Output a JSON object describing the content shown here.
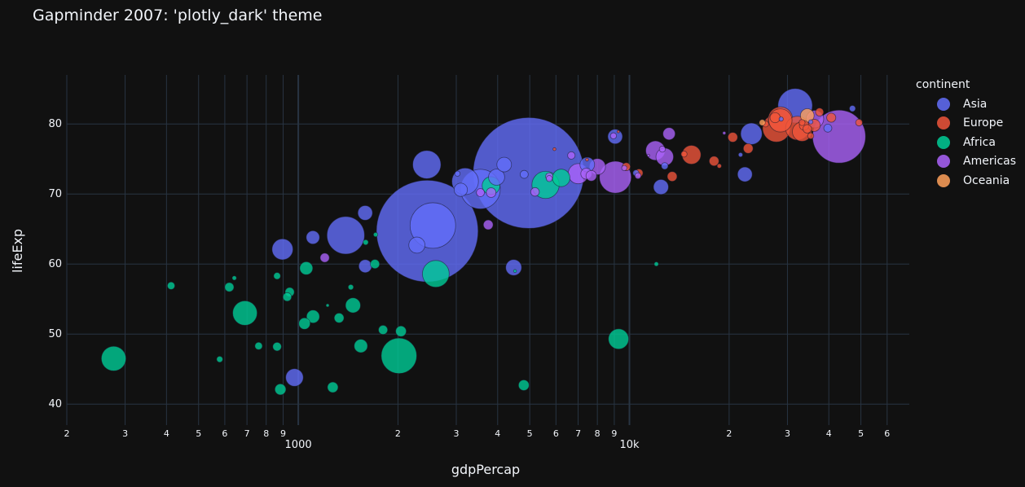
{
  "chart_data": {
    "type": "scatter",
    "title": "Gapminder 2007: 'plotly_dark' theme",
    "xlabel": "gdpPercap",
    "ylabel": "lifeExp",
    "x_scale": "log",
    "xlim": [
      200,
      70000
    ],
    "ylim": [
      37,
      87
    ],
    "grid": true,
    "legend_title": "continent",
    "legend_placement": "right",
    "x_major_ticks": [
      {
        "value": 1000,
        "label": "1000"
      },
      {
        "value": 10000,
        "label": "10k"
      }
    ],
    "x_minor_ticks": [
      {
        "value": 200,
        "label": "2"
      },
      {
        "value": 300,
        "label": "3"
      },
      {
        "value": 400,
        "label": "4"
      },
      {
        "value": 500,
        "label": "5"
      },
      {
        "value": 600,
        "label": "6"
      },
      {
        "value": 700,
        "label": "7"
      },
      {
        "value": 800,
        "label": "8"
      },
      {
        "value": 900,
        "label": "9"
      },
      {
        "value": 2000,
        "label": "2"
      },
      {
        "value": 3000,
        "label": "3"
      },
      {
        "value": 4000,
        "label": "4"
      },
      {
        "value": 5000,
        "label": "5"
      },
      {
        "value": 6000,
        "label": "6"
      },
      {
        "value": 7000,
        "label": "7"
      },
      {
        "value": 8000,
        "label": "8"
      },
      {
        "value": 9000,
        "label": "9"
      },
      {
        "value": 20000,
        "label": "2"
      },
      {
        "value": 30000,
        "label": "3"
      },
      {
        "value": 40000,
        "label": "4"
      },
      {
        "value": 50000,
        "label": "5"
      },
      {
        "value": 60000,
        "label": "6"
      }
    ],
    "y_ticks": [
      40,
      50,
      60,
      70,
      80
    ],
    "series": [
      {
        "name": "Asia",
        "color": "#636efa",
        "points": [
          [
            4959,
            73.0,
            1319
          ],
          [
            2452,
            64.7,
            1110
          ],
          [
            2549,
            65.5,
            223
          ],
          [
            3548,
            70.7,
            169
          ],
          [
            3191,
            71.8,
            76
          ],
          [
            12452,
            71.0,
            24
          ],
          [
            1391,
            64.1,
            151
          ],
          [
            31656,
            82.6,
            127
          ],
          [
            2444,
            74.2,
            85
          ],
          [
            896,
            62.1,
            47
          ],
          [
            23348,
            78.6,
            49
          ],
          [
            9054,
            78.2,
            23
          ],
          [
            7458,
            74.2,
            23
          ],
          [
            2281,
            62.7,
            28
          ],
          [
            22316,
            72.8,
            23
          ],
          [
            3970,
            72.4,
            28
          ],
          [
            1592,
            67.3,
            23
          ],
          [
            4185,
            74.2,
            23
          ],
          [
            1107,
            63.8,
            19
          ],
          [
            4471,
            59.5,
            27
          ],
          [
            974,
            43.8,
            33
          ],
          [
            1593,
            59.7,
            18
          ],
          [
            3095,
            70.6,
            19
          ],
          [
            47143,
            82.2,
            4
          ],
          [
            10461,
            73.0,
            4
          ],
          [
            4811,
            72.8,
            7
          ],
          [
            12779,
            74.0,
            5
          ],
          [
            39725,
            79.4,
            7
          ],
          [
            21655,
            75.6,
            2
          ],
          [
            3025,
            72.9,
            3
          ],
          [
            28718,
            80.7,
            2
          ],
          [
            35278,
            80.3,
            2
          ]
        ]
      },
      {
        "name": "Europe",
        "color": "#ef553b",
        "points": [
          [
            32170,
            79.4,
            61
          ],
          [
            28570,
            80.7,
            64
          ],
          [
            27783,
            79.4,
            82
          ],
          [
            28569,
            80.5,
            58
          ],
          [
            33203,
            78.9,
            40
          ],
          [
            15390,
            75.6,
            38
          ],
          [
            36126,
            79.8,
            16
          ],
          [
            33693,
            79.8,
            10
          ],
          [
            34435,
            79.3,
            8
          ],
          [
            37506,
            81.7,
            7
          ],
          [
            27538,
            80.9,
            11
          ],
          [
            13460,
            72.5,
            10
          ],
          [
            10681,
            73.0,
            7
          ],
          [
            18009,
            74.7,
            10
          ],
          [
            20510,
            78.1,
            10
          ],
          [
            22834,
            76.5,
            10
          ],
          [
            49357,
            80.2,
            5
          ],
          [
            40676,
            80.9,
            9
          ],
          [
            25768,
            80.0,
            4
          ],
          [
            33207,
            80.2,
            4
          ],
          [
            35278,
            78.3,
            4
          ],
          [
            9787,
            73.9,
            7
          ],
          [
            14619,
            75.7,
            4
          ],
          [
            5937,
            76.4,
            1
          ],
          [
            7446,
            74.9,
            1
          ],
          [
            18678,
            74.0,
            2
          ],
          [
            9253,
            78.9,
            0.6
          ]
        ]
      },
      {
        "name": "Africa",
        "color": "#00cc96",
        "points": [
          [
            2014,
            46.9,
            135
          ],
          [
            1803,
            50.6,
            9
          ],
          [
            5581,
            71.3,
            80
          ],
          [
            2602,
            58.6,
            77
          ],
          [
            690,
            53.0,
            64
          ],
          [
            9270,
            49.3,
            44
          ],
          [
            6223,
            72.3,
            33
          ],
          [
            3820,
            71.2,
            34
          ],
          [
            1463,
            54.1,
            24
          ],
          [
            277,
            46.5,
            65
          ],
          [
            1545,
            48.3,
            19
          ],
          [
            1057,
            59.4,
            18
          ],
          [
            1108,
            52.5,
            18
          ],
          [
            1044,
            51.5,
            14
          ],
          [
            1328,
            52.3,
            10
          ],
          [
            2042,
            50.4,
            12
          ],
          [
            4797,
            42.7,
            12
          ],
          [
            579,
            46.4,
            4
          ],
          [
            619,
            56.7,
            9
          ],
          [
            863,
            58.3,
            5
          ],
          [
            1441,
            56.7,
            3
          ],
          [
            926,
            55.3,
            8
          ],
          [
            759,
            48.3,
            6
          ],
          [
            1598,
            63.1,
            3
          ],
          [
            1712,
            64.2,
            2
          ],
          [
            883,
            42.1,
            13
          ],
          [
            413,
            56.9,
            6
          ],
          [
            1271,
            42.4,
            12
          ],
          [
            942,
            56.0,
            9
          ],
          [
            863,
            48.2,
            8
          ],
          [
            12057,
            60.0,
            2
          ],
          [
            641,
            58.0,
            2
          ],
          [
            1704,
            60.0,
            9
          ],
          [
            4513,
            59.0,
            1
          ],
          [
            1226,
            54.1,
            1
          ]
        ]
      },
      {
        "name": "Americas",
        "color": "#ab63fa",
        "points": [
          [
            42952,
            78.2,
            301
          ],
          [
            9066,
            72.4,
            109
          ],
          [
            11978,
            76.2,
            40
          ],
          [
            7007,
            72.9,
            44
          ],
          [
            12779,
            75.3,
            33
          ],
          [
            36319,
            80.7,
            33
          ],
          [
            13172,
            78.6,
            16
          ],
          [
            7408,
            72.9,
            13
          ],
          [
            5186,
            70.3,
            8
          ],
          [
            3822,
            70.2,
            10
          ],
          [
            9646,
            73.7,
            3
          ],
          [
            6677,
            75.5,
            6
          ],
          [
            5728,
            72.2,
            4
          ],
          [
            1202,
            60.9,
            9
          ],
          [
            3548,
            70.2,
            7
          ],
          [
            3746,
            65.6,
            10
          ],
          [
            7670,
            72.6,
            12
          ],
          [
            5728,
            72.5,
            6
          ],
          [
            10611,
            72.6,
            4
          ],
          [
            8948,
            78.3,
            4
          ],
          [
            19329,
            78.7,
            1
          ],
          [
            12570,
            76.4,
            4
          ],
          [
            11416,
            75.5,
            0.3
          ],
          [
            8003,
            73.9,
            28
          ]
        ]
      },
      {
        "name": "Oceania",
        "color": "#FFA15A",
        "points": [
          [
            34435,
            81.2,
            20
          ],
          [
            25185,
            80.2,
            4
          ]
        ]
      }
    ]
  }
}
